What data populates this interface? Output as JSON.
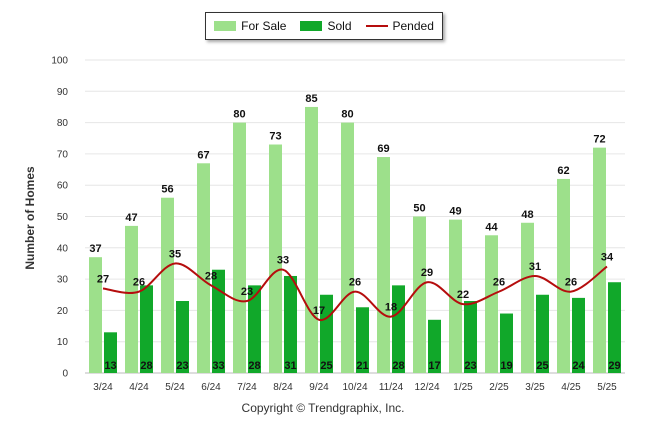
{
  "chart_data": {
    "type": "bar",
    "categories": [
      "3/24",
      "4/24",
      "5/24",
      "6/24",
      "7/24",
      "8/24",
      "9/24",
      "10/24",
      "11/24",
      "12/24",
      "1/25",
      "2/25",
      "3/25",
      "4/25",
      "5/25"
    ],
    "series": [
      {
        "name": "For Sale",
        "type": "bar",
        "color": "#9de08b",
        "values": [
          37,
          47,
          56,
          67,
          80,
          73,
          85,
          80,
          69,
          50,
          49,
          44,
          48,
          62,
          72
        ]
      },
      {
        "name": "Sold",
        "type": "bar",
        "color": "#11a82a",
        "values": [
          13,
          28,
          23,
          33,
          28,
          31,
          25,
          21,
          28,
          17,
          23,
          19,
          25,
          24,
          29
        ]
      },
      {
        "name": "Pended",
        "type": "line",
        "color": "#b50d0d",
        "values": [
          27,
          26,
          35,
          28,
          23,
          33,
          17,
          26,
          18,
          29,
          22,
          26,
          31,
          26,
          34
        ]
      }
    ],
    "ylabel": "Number of Homes",
    "ylim": [
      0,
      100
    ],
    "yticks": [
      0,
      10,
      20,
      30,
      40,
      50,
      60,
      70,
      80,
      90,
      100
    ],
    "grid": true,
    "legend": "top-center"
  },
  "footer": {
    "credit": "Copyright © Trendgraphix, Inc."
  }
}
